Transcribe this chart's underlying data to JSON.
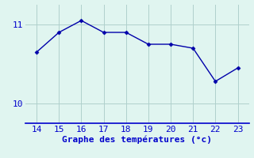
{
  "x": [
    14,
    15,
    16,
    17,
    18,
    19,
    20,
    21,
    22,
    23
  ],
  "y": [
    10.65,
    10.9,
    11.05,
    10.9,
    10.9,
    10.75,
    10.75,
    10.7,
    10.28,
    10.45
  ],
  "line_color": "#0000aa",
  "marker_color": "#0000aa",
  "bg_color": "#e0f5f0",
  "grid_color": "#b0d0cc",
  "axis_color": "#0000cc",
  "xlabel": "Graphe des températures (°c)",
  "xlabel_color": "#0000cc",
  "tick_color": "#0000cc",
  "xlim": [
    13.5,
    23.5
  ],
  "ylim": [
    9.75,
    11.25
  ],
  "yticks": [
    10,
    11
  ],
  "xticks": [
    14,
    15,
    16,
    17,
    18,
    19,
    20,
    21,
    22,
    23
  ],
  "label_fontsize": 8,
  "tick_fontsize": 8
}
